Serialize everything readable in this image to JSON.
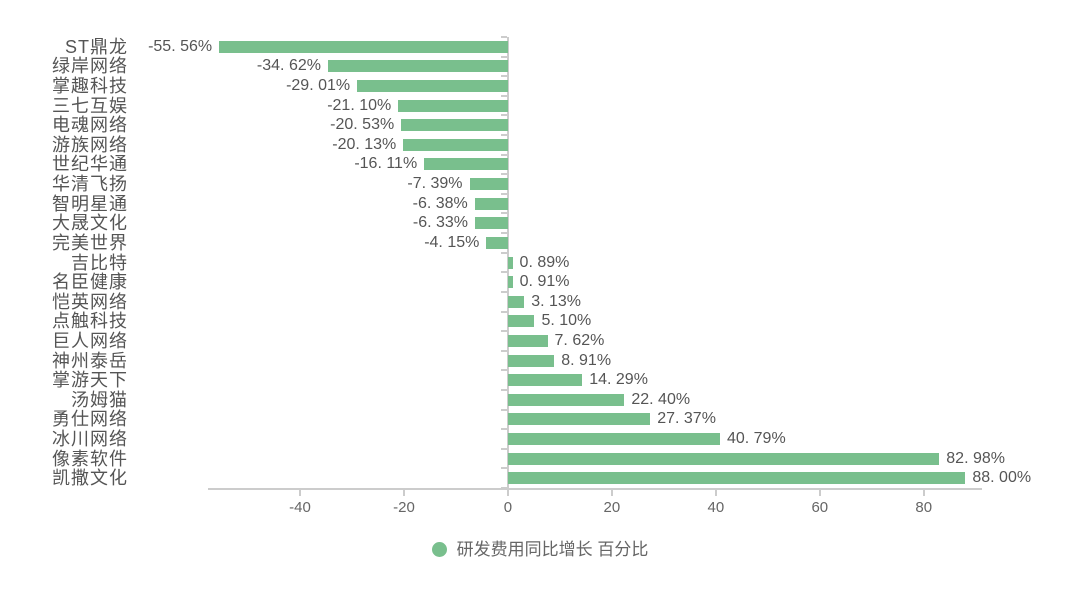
{
  "chart_data": {
    "type": "bar",
    "orientation": "horizontal",
    "title": "",
    "xlabel": "",
    "ylabel": "",
    "series_name": "研发费用同比增长 百分比",
    "categories": [
      "ST鼎龙",
      "绿岸网络",
      "掌趣科技",
      "三七互娱",
      "电魂网络",
      "游族网络",
      "世纪华通",
      "华清飞扬",
      "智明星通",
      "大晟文化",
      "完美世界",
      "吉比特",
      "名臣健康",
      "恺英网络",
      "点触科技",
      "巨人网络",
      "神州泰岳",
      "掌游天下",
      "汤姆猫",
      "勇仕网络",
      "冰川网络",
      "像素软件",
      "凯撒文化"
    ],
    "values": [
      -55.56,
      -34.62,
      -29.01,
      -21.1,
      -20.53,
      -20.13,
      -16.11,
      -7.39,
      -6.38,
      -6.33,
      -4.15,
      0.89,
      0.91,
      3.13,
      5.1,
      7.62,
      8.91,
      14.29,
      22.4,
      27.37,
      40.79,
      82.98,
      88.0
    ],
    "value_labels": [
      "-55. 56%",
      "-34. 62%",
      "-29. 01%",
      "-21. 10%",
      "-20. 53%",
      "-20. 13%",
      "-16. 11%",
      "-7. 39%",
      "-6. 38%",
      "-6. 33%",
      "-4. 15%",
      "0. 89%",
      "0. 91%",
      "3. 13%",
      "5. 10%",
      "7. 62%",
      "8. 91%",
      "14. 29%",
      "22. 40%",
      "27. 37%",
      "40. 79%",
      "82. 98%",
      "88. 00%"
    ],
    "x_ticks": [
      -40,
      -20,
      0,
      20,
      40,
      60,
      80
    ],
    "x_tick_labels": [
      "-40",
      "-20",
      "0",
      "20",
      "40",
      "60",
      "80"
    ],
    "xlim": [
      -57.7,
      91.2
    ],
    "grid": false,
    "legend_position": "bottom",
    "colors": {
      "bar": "#79bf8d",
      "axis": "#cccccc",
      "category_label": "#555555",
      "value_label": "#555555",
      "tick_label": "#666666",
      "legend_text": "#666666",
      "background": "#ffffff"
    }
  },
  "legend": {
    "marker": "circle-icon",
    "marker_color": "#79bf8d",
    "label": "研发费用同比增长 百分比"
  }
}
